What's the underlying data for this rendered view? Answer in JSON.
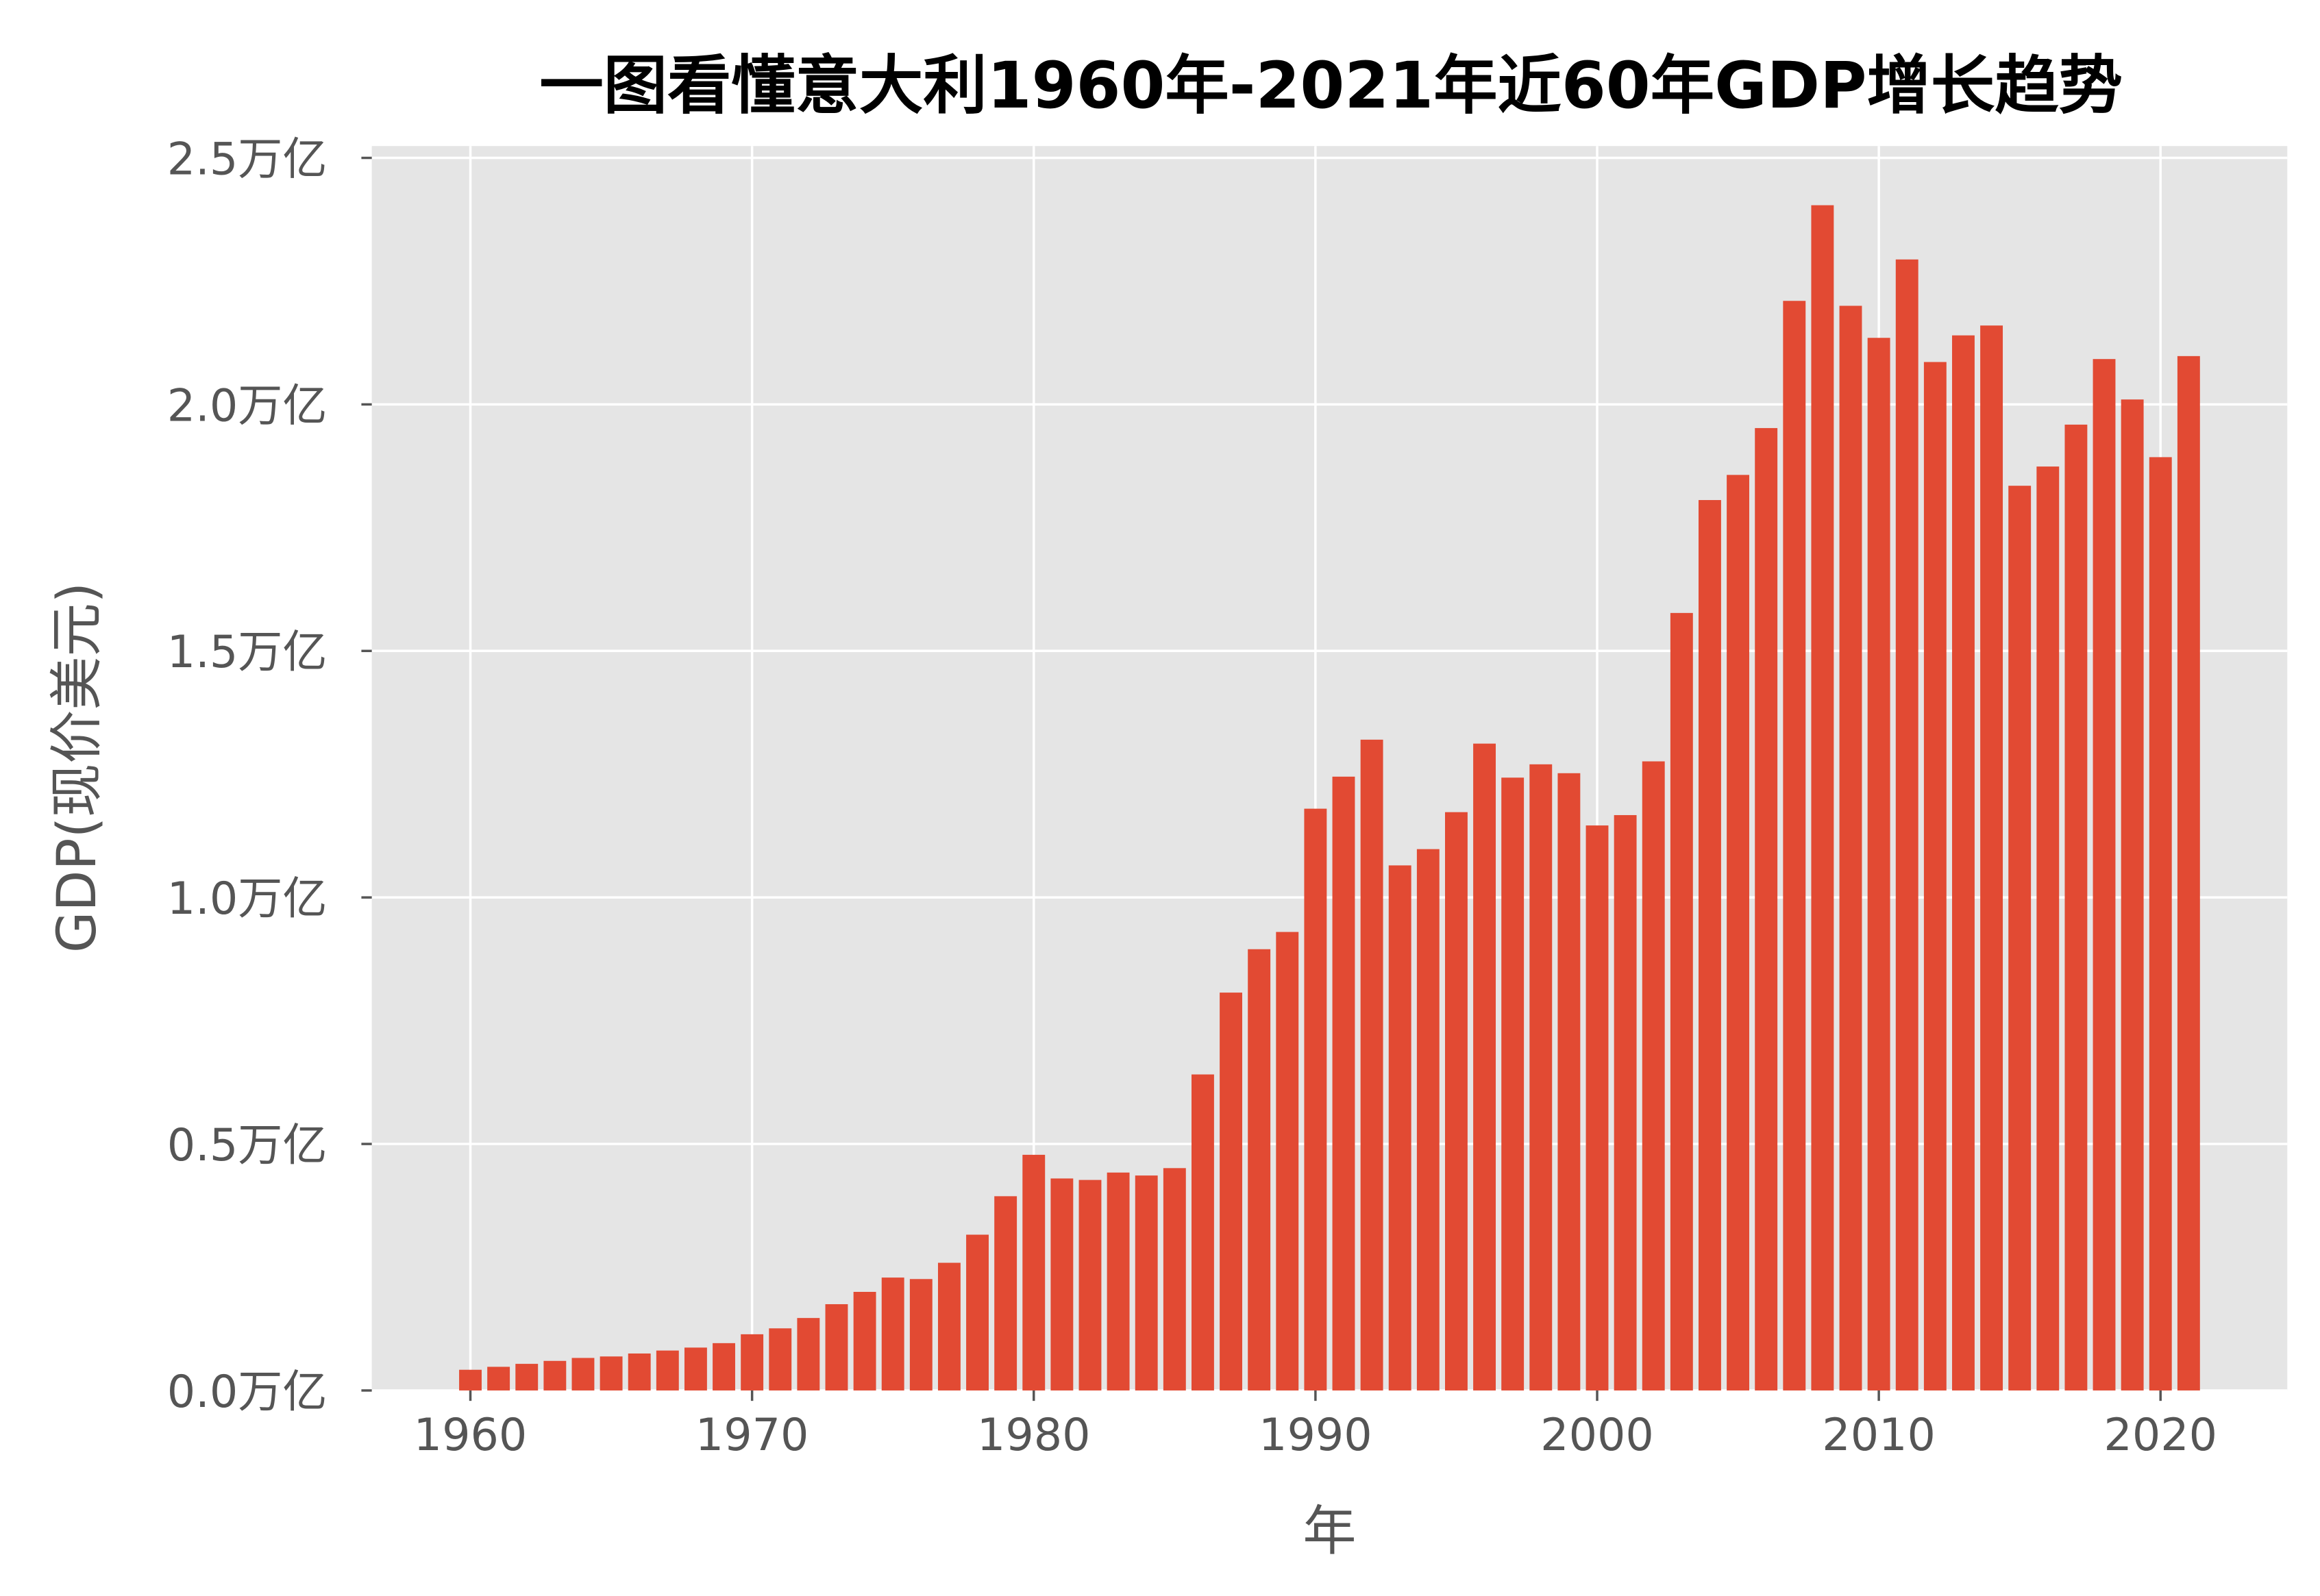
{
  "chart_data": {
    "type": "bar",
    "title": "一图看懂意大利1960年-2021年近60年GDP增长趋势",
    "xlabel": "年",
    "ylabel": "GDP(现价美元)",
    "xlim": [
      1956.5,
      2024.5
    ],
    "ylim": [
      0,
      2.524
    ],
    "grid": true,
    "bar_color": "#E24A33",
    "background_color": "#E5E5E5",
    "x_ticks": [
      1960,
      1970,
      1980,
      1990,
      2000,
      2010,
      2020
    ],
    "y_ticks": [
      0,
      0.5,
      1.0,
      1.5,
      2.0,
      2.5
    ],
    "y_tick_labels": [
      "0.0万亿",
      "0.5万亿",
      "1.0万亿",
      "1.5万亿",
      "2.0万亿",
      "2.5万亿"
    ],
    "y_unit": "万亿",
    "x": [
      1960,
      1961,
      1962,
      1963,
      1964,
      1965,
      1966,
      1967,
      1968,
      1969,
      1970,
      1971,
      1972,
      1973,
      1974,
      1975,
      1976,
      1977,
      1978,
      1979,
      1980,
      1981,
      1982,
      1983,
      1984,
      1985,
      1986,
      1987,
      1988,
      1989,
      1990,
      1991,
      1992,
      1993,
      1994,
      1995,
      1996,
      1997,
      1998,
      1999,
      2000,
      2001,
      2002,
      2003,
      2004,
      2005,
      2006,
      2007,
      2008,
      2009,
      2010,
      2011,
      2012,
      2013,
      2014,
      2015,
      2016,
      2017,
      2018,
      2019,
      2020,
      2021
    ],
    "values": [
      0.042,
      0.048,
      0.054,
      0.06,
      0.066,
      0.069,
      0.075,
      0.081,
      0.087,
      0.096,
      0.114,
      0.126,
      0.147,
      0.175,
      0.2,
      0.229,
      0.226,
      0.259,
      0.316,
      0.394,
      0.478,
      0.43,
      0.427,
      0.442,
      0.436,
      0.451,
      0.641,
      0.807,
      0.895,
      0.93,
      1.18,
      1.245,
      1.32,
      1.065,
      1.098,
      1.173,
      1.312,
      1.243,
      1.27,
      1.252,
      1.146,
      1.167,
      1.276,
      1.577,
      1.806,
      1.857,
      1.952,
      2.21,
      2.404,
      2.2,
      2.135,
      2.294,
      2.086,
      2.14,
      2.16,
      1.835,
      1.874,
      1.959,
      2.092,
      2.01,
      1.893,
      2.098
    ]
  }
}
